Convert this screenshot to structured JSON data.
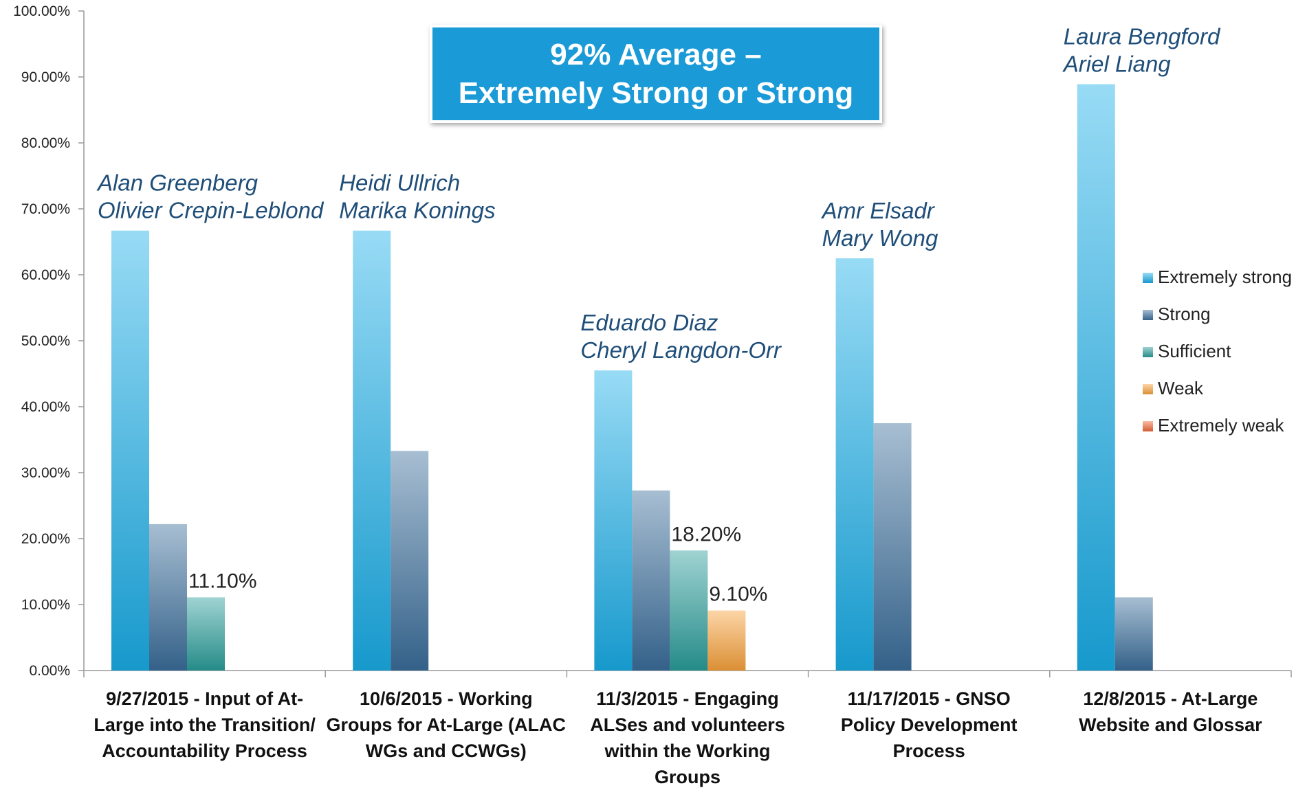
{
  "chart_data": {
    "type": "bar",
    "callout": [
      "92% Average –",
      "Extremely Strong or Strong"
    ],
    "categories": [
      [
        "9/27/2015 - Input of At-",
        "Large into the Transition/",
        "Accountability Process"
      ],
      [
        "10/6/2015 - Working",
        "Groups for At-Large (ALAC",
        "WGs and CCWGs)"
      ],
      [
        "11/3/2015 - Engaging",
        "ALSes and volunteers",
        "within the Working",
        "Groups"
      ],
      [
        "11/17/2015  - GNSO",
        "Policy Development",
        "Process"
      ],
      [
        "12/8/2015 -  At-Large",
        "Website and Glossar"
      ]
    ],
    "presenters": [
      [
        "Alan Greenberg",
        "Olivier Crepin-Leblond"
      ],
      [
        "Heidi Ullrich",
        "Marika Konings"
      ],
      [
        "Eduardo Diaz",
        "Cheryl Langdon-Orr"
      ],
      [
        "Amr Elsadr",
        "Mary Wong"
      ],
      [
        "Laura Bengford",
        "Ariel Liang"
      ]
    ],
    "series": [
      {
        "name": "Extremely strong",
        "color": "#1aaee8",
        "values": [
          66.7,
          66.7,
          45.5,
          62.5,
          88.9
        ]
      },
      {
        "name": "Strong",
        "color": "#3b6e9c",
        "values": [
          22.2,
          33.3,
          27.3,
          37.5,
          11.1
        ]
      },
      {
        "name": "Sufficient",
        "color": "#2a9e9a",
        "values": [
          11.1,
          0,
          18.2,
          0,
          0
        ]
      },
      {
        "name": "Weak",
        "color": "#f9a23b",
        "values": [
          0,
          0,
          9.1,
          0,
          0
        ]
      },
      {
        "name": "Extremely weak",
        "color": "#f0673a",
        "values": [
          0,
          0,
          0,
          0,
          0
        ]
      }
    ],
    "data_labels": [
      {
        "series": 2,
        "category": 0,
        "text": "11.10%"
      },
      {
        "series": 2,
        "category": 2,
        "text": "18.20%"
      },
      {
        "series": 3,
        "category": 2,
        "text": "9.10%"
      }
    ],
    "yticks": [
      "0.00%",
      "10.00%",
      "20.00%",
      "30.00%",
      "40.00%",
      "50.00%",
      "60.00%",
      "70.00%",
      "80.00%",
      "90.00%",
      "100.00%"
    ],
    "ylim": [
      0,
      100
    ],
    "grid": false,
    "legend_position": "right"
  }
}
